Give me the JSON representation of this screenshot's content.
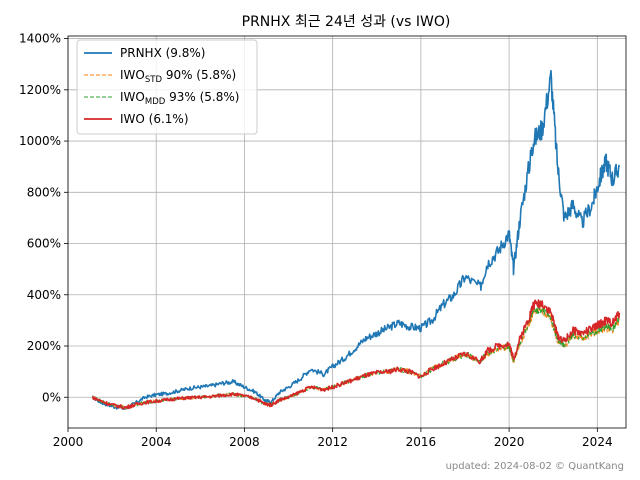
{
  "chart_data": {
    "type": "line",
    "title": "PRNHX 최근 24년 성과 (vs IWO)",
    "xlabel": "",
    "ylabel": "",
    "x_ticks": [
      2000,
      2004,
      2008,
      2012,
      2016,
      2020,
      2024
    ],
    "x_tick_labels": [
      "2000",
      "2004",
      "2008",
      "2012",
      "2016",
      "2020",
      "2024"
    ],
    "y_ticks": [
      0,
      200,
      400,
      600,
      800,
      1000,
      1200,
      1400
    ],
    "y_tick_labels": [
      "0%",
      "200%",
      "400%",
      "600%",
      "800%",
      "1000%",
      "1200%",
      "1400%"
    ],
    "xlim": [
      2000,
      2025.3
    ],
    "ylim": [
      -120,
      1410
    ],
    "grid": true,
    "legend_placement": "top-left",
    "series": [
      {
        "name": "PRNHX (9.8%)",
        "label_main": "PRNHX (9.8%)",
        "color": "#1f77b4",
        "style": "solid",
        "x": [
          2001.1,
          2001.5,
          2002.0,
          2002.6,
          2003.0,
          2003.5,
          2004.0,
          2004.5,
          2005.0,
          2005.5,
          2006.0,
          2006.5,
          2007.0,
          2007.5,
          2008.0,
          2008.5,
          2008.9,
          2009.2,
          2009.6,
          2010.0,
          2010.5,
          2011.0,
          2011.6,
          2012.0,
          2012.5,
          2013.0,
          2013.5,
          2014.0,
          2014.5,
          2015.0,
          2015.5,
          2016.0,
          2016.5,
          2017.0,
          2017.5,
          2018.0,
          2018.7,
          2019.0,
          2019.5,
          2020.0,
          2020.2,
          2020.5,
          2020.9,
          2021.1,
          2021.5,
          2021.9,
          2022.2,
          2022.5,
          2022.9,
          2023.3,
          2023.8,
          2024.1,
          2024.4,
          2024.7,
          2025.0
        ],
        "y": [
          0,
          -20,
          -35,
          -45,
          -25,
          0,
          10,
          15,
          25,
          35,
          40,
          45,
          55,
          60,
          40,
          20,
          -10,
          -20,
          20,
          40,
          70,
          110,
          90,
          120,
          150,
          190,
          230,
          250,
          270,
          290,
          275,
          270,
          300,
          360,
          400,
          470,
          430,
          520,
          570,
          640,
          500,
          700,
          900,
          1000,
          1050,
          1250,
          900,
          700,
          750,
          680,
          760,
          850,
          920,
          850,
          900
        ]
      },
      {
        "name": "IWO_STD 90% (5.8%)",
        "label_main": "IWO",
        "label_sub": "STD",
        "label_tail": " 90% (5.8%)",
        "color": "#ff7f0e",
        "style": "dashed",
        "x": [
          2001.1,
          2001.5,
          2002.0,
          2002.6,
          2003.0,
          2003.5,
          2004.0,
          2004.5,
          2005.0,
          2005.5,
          2006.0,
          2006.5,
          2007.0,
          2007.5,
          2008.0,
          2008.5,
          2008.9,
          2009.2,
          2009.6,
          2010.0,
          2010.5,
          2011.0,
          2011.6,
          2012.0,
          2012.5,
          2013.0,
          2013.5,
          2014.0,
          2014.5,
          2015.0,
          2015.5,
          2016.0,
          2016.5,
          2017.0,
          2017.5,
          2018.0,
          2018.7,
          2019.0,
          2019.5,
          2020.0,
          2020.2,
          2020.5,
          2020.9,
          2021.1,
          2021.5,
          2021.9,
          2022.2,
          2022.5,
          2022.9,
          2023.3,
          2023.8,
          2024.1,
          2024.4,
          2024.7,
          2025.0
        ],
        "y": [
          0,
          -15,
          -30,
          -40,
          -30,
          -20,
          -15,
          -10,
          -5,
          -2,
          0,
          3,
          8,
          12,
          5,
          -5,
          -25,
          -30,
          -10,
          0,
          20,
          40,
          30,
          40,
          55,
          70,
          85,
          95,
          100,
          110,
          100,
          80,
          110,
          130,
          150,
          170,
          140,
          170,
          190,
          195,
          140,
          210,
          290,
          330,
          340,
          300,
          220,
          200,
          240,
          230,
          250,
          260,
          270,
          265,
          300
        ]
      },
      {
        "name": "IWO_MDD 93% (5.8%)",
        "label_main": "IWO",
        "label_sub": "MDD",
        "label_tail": " 93% (5.8%)",
        "color": "#2ca02c",
        "style": "dashed",
        "x": [
          2001.1,
          2001.5,
          2002.0,
          2002.6,
          2003.0,
          2003.5,
          2004.0,
          2004.5,
          2005.0,
          2005.5,
          2006.0,
          2006.5,
          2007.0,
          2007.5,
          2008.0,
          2008.5,
          2008.9,
          2009.2,
          2009.6,
          2010.0,
          2010.5,
          2011.0,
          2011.6,
          2012.0,
          2012.5,
          2013.0,
          2013.5,
          2014.0,
          2014.5,
          2015.0,
          2015.5,
          2016.0,
          2016.5,
          2017.0,
          2017.5,
          2018.0,
          2018.7,
          2019.0,
          2019.5,
          2020.0,
          2020.2,
          2020.5,
          2020.9,
          2021.1,
          2021.5,
          2021.9,
          2022.2,
          2022.5,
          2022.9,
          2023.3,
          2023.8,
          2024.1,
          2024.4,
          2024.7,
          2025.0
        ],
        "y": [
          0,
          -15,
          -30,
          -40,
          -30,
          -20,
          -15,
          -10,
          -5,
          -2,
          0,
          3,
          8,
          12,
          5,
          -5,
          -25,
          -30,
          -10,
          0,
          20,
          40,
          30,
          40,
          55,
          70,
          85,
          95,
          100,
          110,
          100,
          80,
          110,
          130,
          150,
          170,
          140,
          172,
          192,
          198,
          142,
          215,
          295,
          335,
          345,
          305,
          225,
          205,
          245,
          235,
          255,
          265,
          275,
          270,
          305
        ]
      },
      {
        "name": "IWO (6.1%)",
        "label_main": "IWO (6.1%)",
        "color": "#d62728",
        "style": "solid",
        "x": [
          2001.1,
          2001.5,
          2002.0,
          2002.6,
          2003.0,
          2003.5,
          2004.0,
          2004.5,
          2005.0,
          2005.5,
          2006.0,
          2006.5,
          2007.0,
          2007.5,
          2008.0,
          2008.5,
          2008.9,
          2009.2,
          2009.6,
          2010.0,
          2010.5,
          2011.0,
          2011.6,
          2012.0,
          2012.5,
          2013.0,
          2013.5,
          2014.0,
          2014.5,
          2015.0,
          2015.5,
          2016.0,
          2016.5,
          2017.0,
          2017.5,
          2018.0,
          2018.7,
          2019.0,
          2019.5,
          2020.0,
          2020.2,
          2020.5,
          2020.9,
          2021.1,
          2021.5,
          2021.9,
          2022.2,
          2022.5,
          2022.9,
          2023.3,
          2023.8,
          2024.1,
          2024.4,
          2024.7,
          2025.0
        ],
        "y": [
          0,
          -15,
          -30,
          -40,
          -30,
          -20,
          -15,
          -10,
          -5,
          -2,
          0,
          3,
          8,
          12,
          5,
          -5,
          -25,
          -30,
          -10,
          0,
          20,
          40,
          30,
          40,
          55,
          70,
          85,
          95,
          100,
          110,
          100,
          80,
          110,
          130,
          150,
          170,
          140,
          180,
          200,
          210,
          150,
          230,
          310,
          360,
          370,
          330,
          240,
          220,
          260,
          250,
          270,
          285,
          300,
          290,
          330
        ]
      }
    ]
  },
  "footer_text": "updated: 2024-08-02 © QuantKang"
}
